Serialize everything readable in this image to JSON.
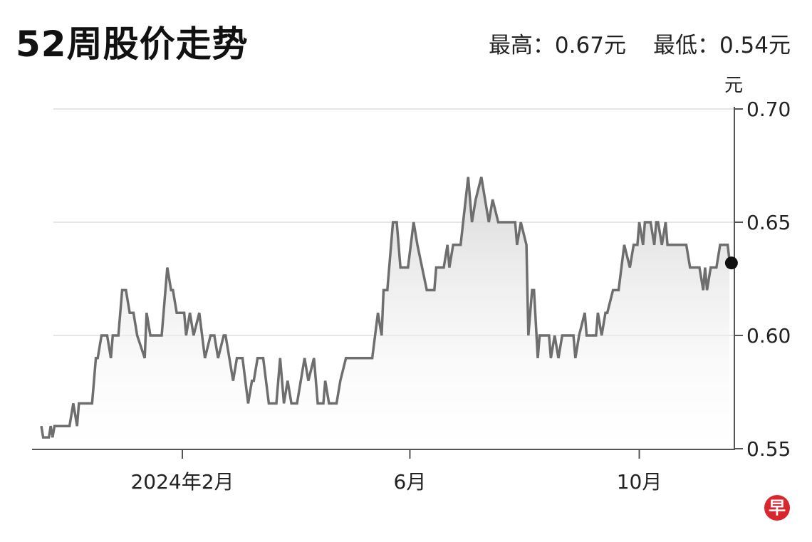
{
  "title": "52周股价走势",
  "stats": {
    "high": "最高：0.67元",
    "low": "最低：0.54元"
  },
  "logo_text": "早",
  "chart_data": {
    "type": "line",
    "title": "52周股价走势",
    "ylabel": "元",
    "xlabel": "",
    "ylim": [
      0.55,
      0.7
    ],
    "y_ticks": [
      "0.70",
      "0.65",
      "0.60",
      "0.55"
    ],
    "y_tick_values": [
      0.7,
      0.65,
      0.6,
      0.55
    ],
    "x_ticks": [
      {
        "label": "2024年2月",
        "date": "2024-02-01"
      },
      {
        "label": "6月",
        "date": "2024-06-01"
      },
      {
        "label": "10月",
        "date": "2024-10-01"
      }
    ],
    "grid": true,
    "area_fill": true,
    "line_color": "#6e6e6e",
    "last_point": {
      "date": "2024-11-19",
      "value": 0.632
    },
    "series": [
      {
        "points": [
          [
            "2023-11-18",
            0.56
          ],
          [
            "2023-11-19",
            0.555
          ],
          [
            "2023-11-22",
            0.555
          ],
          [
            "2023-11-23",
            0.56
          ],
          [
            "2023-11-24",
            0.555
          ],
          [
            "2023-11-25",
            0.56
          ],
          [
            "2023-12-03",
            0.56
          ],
          [
            "2023-12-05",
            0.57
          ],
          [
            "2023-12-07",
            0.56
          ],
          [
            "2023-12-08",
            0.57
          ],
          [
            "2023-12-15",
            0.57
          ],
          [
            "2023-12-17",
            0.59
          ],
          [
            "2023-12-18",
            0.59
          ],
          [
            "2023-12-20",
            0.6
          ],
          [
            "2023-12-23",
            0.6
          ],
          [
            "2023-12-25",
            0.59
          ],
          [
            "2023-12-26",
            0.6
          ],
          [
            "2023-12-29",
            0.6
          ],
          [
            "2023-12-31",
            0.62
          ],
          [
            "2024-01-02",
            0.62
          ],
          [
            "2024-01-04",
            0.61
          ],
          [
            "2024-01-06",
            0.61
          ],
          [
            "2024-01-08",
            0.6
          ],
          [
            "2024-01-12",
            0.59
          ],
          [
            "2024-01-13",
            0.61
          ],
          [
            "2024-01-15",
            0.6
          ],
          [
            "2024-01-21",
            0.6
          ],
          [
            "2024-01-24",
            0.63
          ],
          [
            "2024-01-26",
            0.62
          ],
          [
            "2024-01-27",
            0.62
          ],
          [
            "2024-01-29",
            0.61
          ],
          [
            "2024-02-02",
            0.61
          ],
          [
            "2024-02-03",
            0.6
          ],
          [
            "2024-02-05",
            0.61
          ],
          [
            "2024-02-07",
            0.6
          ],
          [
            "2024-02-10",
            0.61
          ],
          [
            "2024-02-13",
            0.59
          ],
          [
            "2024-02-16",
            0.6
          ],
          [
            "2024-02-18",
            0.6
          ],
          [
            "2024-02-20",
            0.59
          ],
          [
            "2024-02-23",
            0.6
          ],
          [
            "2024-02-24",
            0.6
          ],
          [
            "2024-02-26",
            0.59
          ],
          [
            "2024-02-28",
            0.58
          ],
          [
            "2024-03-01",
            0.59
          ],
          [
            "2024-03-04",
            0.59
          ],
          [
            "2024-03-07",
            0.57
          ],
          [
            "2024-03-09",
            0.58
          ],
          [
            "2024-03-10",
            0.58
          ],
          [
            "2024-03-12",
            0.59
          ],
          [
            "2024-03-15",
            0.59
          ],
          [
            "2024-03-18",
            0.57
          ],
          [
            "2024-03-22",
            0.57
          ],
          [
            "2024-03-24",
            0.59
          ],
          [
            "2024-03-26",
            0.57
          ],
          [
            "2024-03-28",
            0.58
          ],
          [
            "2024-03-30",
            0.57
          ],
          [
            "2024-04-02",
            0.57
          ],
          [
            "2024-04-06",
            0.59
          ],
          [
            "2024-04-08",
            0.58
          ],
          [
            "2024-04-11",
            0.59
          ],
          [
            "2024-04-13",
            0.57
          ],
          [
            "2024-04-16",
            0.57
          ],
          [
            "2024-04-17",
            0.58
          ],
          [
            "2024-04-19",
            0.57
          ],
          [
            "2024-04-23",
            0.57
          ],
          [
            "2024-04-25",
            0.58
          ],
          [
            "2024-04-28",
            0.59
          ],
          [
            "2024-05-12",
            0.59
          ],
          [
            "2024-05-15",
            0.61
          ],
          [
            "2024-05-17",
            0.6
          ],
          [
            "2024-05-18",
            0.62
          ],
          [
            "2024-05-20",
            0.62
          ],
          [
            "2024-05-23",
            0.65
          ],
          [
            "2024-05-25",
            0.65
          ],
          [
            "2024-05-27",
            0.63
          ],
          [
            "2024-05-31",
            0.63
          ],
          [
            "2024-06-03",
            0.65
          ],
          [
            "2024-06-05",
            0.64
          ],
          [
            "2024-06-10",
            0.62
          ],
          [
            "2024-06-14",
            0.62
          ],
          [
            "2024-06-15",
            0.63
          ],
          [
            "2024-06-19",
            0.63
          ],
          [
            "2024-06-21",
            0.64
          ],
          [
            "2024-06-22",
            0.63
          ],
          [
            "2024-06-24",
            0.64
          ],
          [
            "2024-06-28",
            0.64
          ],
          [
            "2024-07-02",
            0.67
          ],
          [
            "2024-07-04",
            0.65
          ],
          [
            "2024-07-06",
            0.66
          ],
          [
            "2024-07-09",
            0.67
          ],
          [
            "2024-07-11",
            0.66
          ],
          [
            "2024-07-13",
            0.65
          ],
          [
            "2024-07-15",
            0.66
          ],
          [
            "2024-07-18",
            0.65
          ],
          [
            "2024-07-27",
            0.65
          ],
          [
            "2024-07-28",
            0.64
          ],
          [
            "2024-07-30",
            0.65
          ],
          [
            "2024-08-02",
            0.64
          ],
          [
            "2024-08-03",
            0.6
          ],
          [
            "2024-08-05",
            0.62
          ],
          [
            "2024-08-06",
            0.62
          ],
          [
            "2024-08-08",
            0.59
          ],
          [
            "2024-08-09",
            0.6
          ],
          [
            "2024-08-14",
            0.6
          ],
          [
            "2024-08-15",
            0.59
          ],
          [
            "2024-08-17",
            0.6
          ],
          [
            "2024-08-19",
            0.59
          ],
          [
            "2024-08-21",
            0.6
          ],
          [
            "2024-08-27",
            0.6
          ],
          [
            "2024-08-28",
            0.59
          ],
          [
            "2024-08-30",
            0.6
          ],
          [
            "2024-09-02",
            0.61
          ],
          [
            "2024-09-03",
            0.6
          ],
          [
            "2024-09-08",
            0.6
          ],
          [
            "2024-09-09",
            0.61
          ],
          [
            "2024-09-11",
            0.6
          ],
          [
            "2024-09-13",
            0.61
          ],
          [
            "2024-09-14",
            0.61
          ],
          [
            "2024-09-17",
            0.62
          ],
          [
            "2024-09-20",
            0.62
          ],
          [
            "2024-09-23",
            0.64
          ],
          [
            "2024-09-26",
            0.63
          ],
          [
            "2024-09-28",
            0.64
          ],
          [
            "2024-09-30",
            0.64
          ],
          [
            "2024-10-01",
            0.65
          ],
          [
            "2024-10-03",
            0.64
          ],
          [
            "2024-10-04",
            0.65
          ],
          [
            "2024-10-07",
            0.65
          ],
          [
            "2024-10-09",
            0.64
          ],
          [
            "2024-10-10",
            0.65
          ],
          [
            "2024-10-11",
            0.65
          ],
          [
            "2024-10-13",
            0.64
          ],
          [
            "2024-10-15",
            0.65
          ],
          [
            "2024-10-16",
            0.64
          ],
          [
            "2024-10-26",
            0.64
          ],
          [
            "2024-10-28",
            0.63
          ],
          [
            "2024-11-02",
            0.63
          ],
          [
            "2024-11-04",
            0.62
          ],
          [
            "2024-11-05",
            0.63
          ],
          [
            "2024-11-06",
            0.62
          ],
          [
            "2024-11-08",
            0.63
          ],
          [
            "2024-11-11",
            0.63
          ],
          [
            "2024-11-13",
            0.64
          ],
          [
            "2024-11-17",
            0.64
          ],
          [
            "2024-11-18",
            0.633
          ]
        ]
      }
    ]
  }
}
